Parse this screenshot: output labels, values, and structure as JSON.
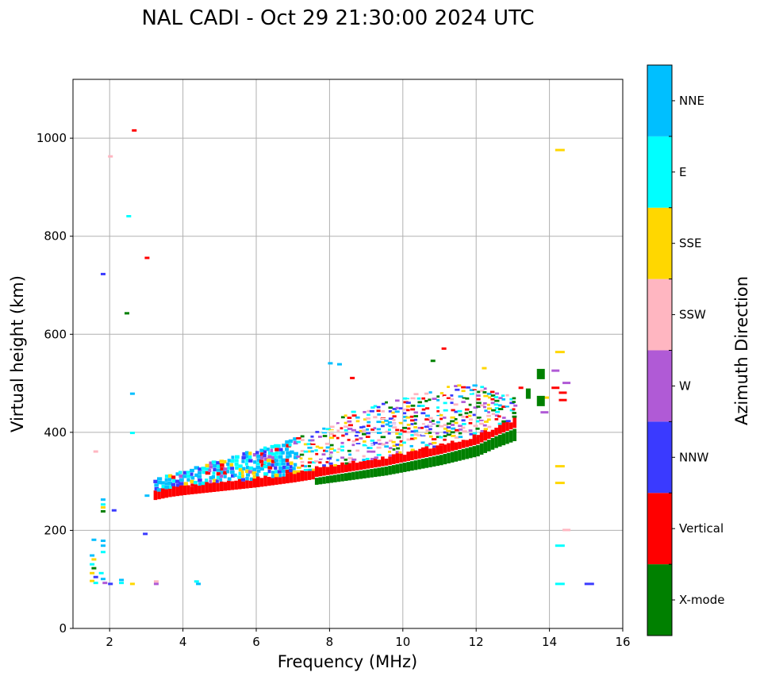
{
  "chart_data": {
    "type": "scatter",
    "title": "NAL CADI - Oct 29 21:30:00 2024 UTC",
    "xlabel": "Frequency (MHz)",
    "ylabel": "Virtual height (km)",
    "xlim": [
      1,
      16
    ],
    "ylim": [
      0,
      1120
    ],
    "xticks": [
      2,
      4,
      6,
      8,
      10,
      12,
      14,
      16
    ],
    "yticks": [
      0,
      200,
      400,
      600,
      800,
      1000
    ],
    "grid": true,
    "colorbar": {
      "title": "Azimuth Direction",
      "categories": [
        {
          "name": "X-mode",
          "color": "#008000"
        },
        {
          "name": "Vertical",
          "color": "#ff0000"
        },
        {
          "name": "NNW",
          "color": "#3a3aff"
        },
        {
          "name": "W",
          "color": "#b05ad6"
        },
        {
          "name": "SSW",
          "color": "#ffb6c1"
        },
        {
          "name": "SSE",
          "color": "#ffd700"
        },
        {
          "name": "E",
          "color": "#00ffff"
        },
        {
          "name": "NNE",
          "color": "#00bfff"
        }
      ]
    },
    "trace": {
      "description": "Main F-layer echo trace (lower-edge and upper-edge virtual height in km per frequency in MHz)",
      "freq_mhz": [
        3.2,
        3.6,
        4.0,
        4.5,
        5.0,
        5.5,
        6.0,
        6.5,
        7.0,
        7.5,
        8.0,
        8.5,
        9.0,
        9.5,
        10.0,
        10.5,
        11.0,
        11.5,
        12.0,
        12.5,
        13.0
      ],
      "lower_km": [
        262,
        268,
        272,
        276,
        280,
        284,
        288,
        293,
        298,
        304,
        310,
        316,
        322,
        328,
        336,
        344,
        352,
        362,
        372,
        390,
        405
      ],
      "upper_km": [
        300,
        312,
        320,
        330,
        340,
        352,
        362,
        372,
        385,
        400,
        420,
        438,
        450,
        460,
        470,
        480,
        490,
        495,
        495,
        480,
        470
      ]
    },
    "points": [
      {
        "f": 2.65,
        "h": 1015,
        "c": "Vertical"
      },
      {
        "f": 2.0,
        "h": 962,
        "c": "SSW"
      },
      {
        "f": 2.5,
        "h": 840,
        "c": "E"
      },
      {
        "f": 3.0,
        "h": 755,
        "c": "Vertical"
      },
      {
        "f": 1.8,
        "h": 722,
        "c": "NNW"
      },
      {
        "f": 2.45,
        "h": 642,
        "c": "X-mode"
      },
      {
        "f": 2.6,
        "h": 478,
        "c": "NNE"
      },
      {
        "f": 2.6,
        "h": 398,
        "c": "E"
      },
      {
        "f": 1.6,
        "h": 360,
        "c": "SSW"
      },
      {
        "f": 1.8,
        "h": 262,
        "c": "NNE"
      },
      {
        "f": 1.8,
        "h": 252,
        "c": "E"
      },
      {
        "f": 1.8,
        "h": 246,
        "c": "SSE"
      },
      {
        "f": 1.8,
        "h": 238,
        "c": "X-mode"
      },
      {
        "f": 2.1,
        "h": 240,
        "c": "NNW"
      },
      {
        "f": 2.95,
        "h": 192,
        "c": "NNW"
      },
      {
        "f": 3.0,
        "h": 270,
        "c": "NNE"
      },
      {
        "f": 1.55,
        "h": 180,
        "c": "NNE"
      },
      {
        "f": 1.8,
        "h": 178,
        "c": "NNE"
      },
      {
        "f": 1.8,
        "h": 168,
        "c": "NNE"
      },
      {
        "f": 1.8,
        "h": 155,
        "c": "E"
      },
      {
        "f": 1.5,
        "h": 148,
        "c": "NNE"
      },
      {
        "f": 1.55,
        "h": 140,
        "c": "SSE"
      },
      {
        "f": 1.5,
        "h": 130,
        "c": "E"
      },
      {
        "f": 1.55,
        "h": 122,
        "c": "X-mode"
      },
      {
        "f": 1.5,
        "h": 112,
        "c": "SSE"
      },
      {
        "f": 1.6,
        "h": 104,
        "c": "NNW"
      },
      {
        "f": 1.5,
        "h": 96,
        "c": "SSE"
      },
      {
        "f": 1.6,
        "h": 92,
        "c": "E"
      },
      {
        "f": 1.75,
        "h": 112,
        "c": "E"
      },
      {
        "f": 1.8,
        "h": 100,
        "c": "NNE"
      },
      {
        "f": 1.85,
        "h": 92,
        "c": "W"
      },
      {
        "f": 2.0,
        "h": 90,
        "c": "NNW"
      },
      {
        "f": 2.3,
        "h": 98,
        "c": "NNE"
      },
      {
        "f": 2.3,
        "h": 92,
        "c": "E"
      },
      {
        "f": 2.6,
        "h": 90,
        "c": "SSE"
      },
      {
        "f": 3.25,
        "h": 95,
        "c": "SSW"
      },
      {
        "f": 3.25,
        "h": 90,
        "c": "W"
      },
      {
        "f": 4.35,
        "h": 95,
        "c": "E"
      },
      {
        "f": 4.4,
        "h": 90,
        "c": "NNE"
      },
      {
        "f": 14.2,
        "h": 975,
        "c": "SSE"
      },
      {
        "f": 14.2,
        "h": 563,
        "c": "SSE"
      },
      {
        "f": 14.2,
        "h": 330,
        "c": "SSE"
      },
      {
        "f": 14.2,
        "h": 296,
        "c": "SSE"
      },
      {
        "f": 14.4,
        "h": 200,
        "c": "SSW"
      },
      {
        "f": 14.2,
        "h": 168,
        "c": "E"
      },
      {
        "f": 14.2,
        "h": 90,
        "c": "E"
      },
      {
        "f": 15.0,
        "h": 90,
        "c": "NNW"
      },
      {
        "f": 11.1,
        "h": 570,
        "c": "Vertical"
      },
      {
        "f": 10.8,
        "h": 545,
        "c": "X-mode"
      },
      {
        "f": 8.0,
        "h": 540,
        "c": "NNE"
      },
      {
        "f": 8.25,
        "h": 538,
        "c": "NNE"
      },
      {
        "f": 8.6,
        "h": 510,
        "c": "Vertical"
      },
      {
        "f": 13.7,
        "h": 510,
        "c": "X-mode"
      },
      {
        "f": 14.1,
        "h": 525,
        "c": "W"
      },
      {
        "f": 14.4,
        "h": 500,
        "c": "W"
      },
      {
        "f": 14.1,
        "h": 490,
        "c": "Vertical"
      },
      {
        "f": 14.3,
        "h": 480,
        "c": "Vertical"
      },
      {
        "f": 14.3,
        "h": 465,
        "c": "Vertical"
      },
      {
        "f": 13.9,
        "h": 470,
        "c": "SSE"
      },
      {
        "f": 13.7,
        "h": 455,
        "c": "X-mode"
      },
      {
        "f": 13.8,
        "h": 440,
        "c": "W"
      },
      {
        "f": 12.2,
        "h": 530,
        "c": "SSE"
      },
      {
        "f": 13.2,
        "h": 490,
        "c": "Vertical"
      },
      {
        "f": 13.4,
        "h": 470,
        "c": "X-mode"
      }
    ]
  }
}
